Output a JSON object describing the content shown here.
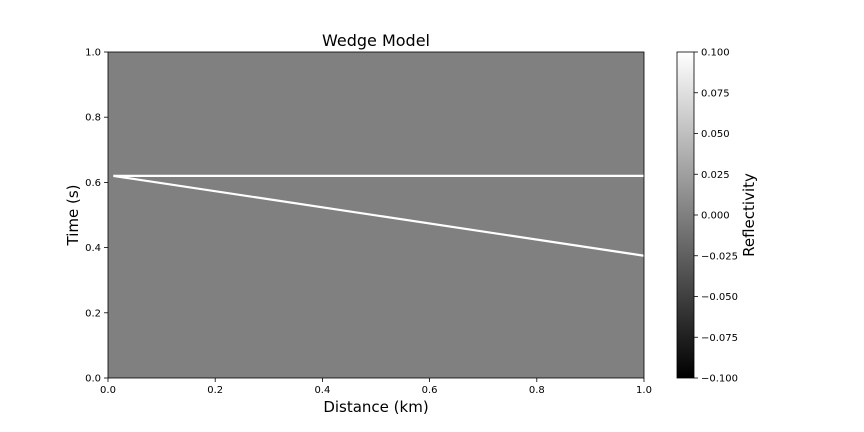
{
  "chart_data": {
    "type": "heatmap",
    "title": "Wedge Model",
    "xlabel": "Distance (km)",
    "ylabel": "Time (s)",
    "xlim": [
      0.0,
      1.0
    ],
    "ylim": [
      0.0,
      1.0
    ],
    "x_ticks": [
      "0.0",
      "0.2",
      "0.4",
      "0.6",
      "0.8",
      "1.0"
    ],
    "y_ticks": [
      "0.0",
      "0.2",
      "0.4",
      "0.6",
      "0.8",
      "1.0"
    ],
    "background_value": 0.0,
    "colormap": "gray",
    "colorbar": {
      "label": "Reflectivity",
      "range": [
        -0.1,
        0.1
      ],
      "ticks": [
        "−0.100",
        "−0.075",
        "−0.050",
        "−0.025",
        "0.000",
        "0.025",
        "0.050",
        "0.075",
        "0.100"
      ],
      "min_color": "#000000",
      "max_color": "#ffffff"
    },
    "series": [
      {
        "value": 0.1,
        "x": [
          0.01,
          1.0
        ],
        "y": [
          0.62,
          0.62
        ]
      },
      {
        "value": 0.1,
        "x": [
          0.01,
          1.0
        ],
        "y": [
          0.62,
          0.375
        ]
      }
    ],
    "grid": false,
    "background_color": "#808080",
    "reflector_color": "#ffffff"
  }
}
